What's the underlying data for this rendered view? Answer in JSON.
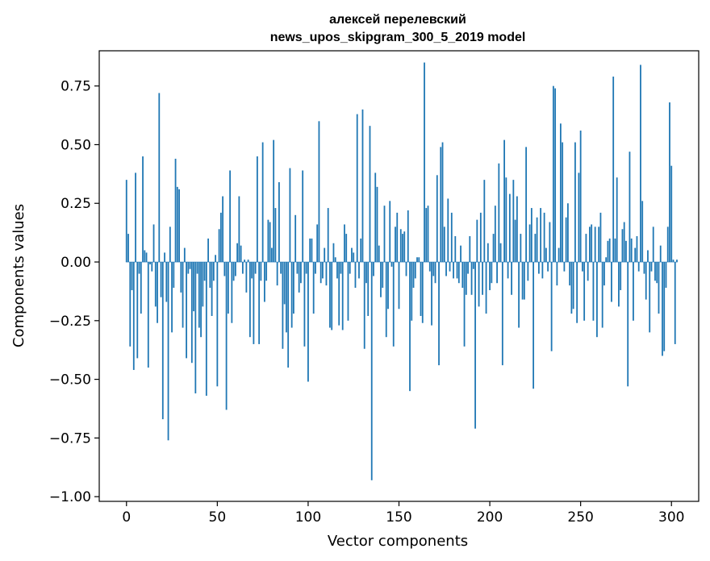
{
  "chart_data": {
    "type": "bar",
    "title_line1": "алексей перелевский",
    "title_line2": "news_upos_skipgram_300_5_2019 model",
    "xlabel": "Vector components",
    "ylabel": "Components values",
    "xlim": [
      -15,
      315
    ],
    "ylim": [
      -1.02,
      0.9
    ],
    "xticks": [
      0,
      50,
      100,
      150,
      200,
      250,
      300
    ],
    "yticks": [
      -1.0,
      -0.75,
      -0.5,
      -0.25,
      0.0,
      0.25,
      0.5,
      0.75
    ],
    "ytick_labels": [
      "−1.00",
      "−0.75",
      "−0.50",
      "−0.25",
      "0.00",
      "0.25",
      "0.50",
      "0.75"
    ],
    "bar_color": "#1f77b4",
    "grid": false,
    "values": [
      0.35,
      0.12,
      -0.36,
      -0.12,
      -0.46,
      0.38,
      -0.41,
      -0.05,
      -0.22,
      0.45,
      0.05,
      0.04,
      -0.45,
      -0.01,
      -0.04,
      0.16,
      -0.19,
      -0.26,
      0.72,
      -0.15,
      -0.67,
      0.04,
      -0.17,
      -0.76,
      0.15,
      -0.3,
      -0.11,
      0.44,
      0.32,
      0.31,
      -0.13,
      -0.28,
      0.06,
      -0.41,
      -0.05,
      -0.03,
      -0.43,
      -0.21,
      -0.56,
      -0.05,
      -0.28,
      -0.32,
      -0.19,
      -0.08,
      -0.57,
      0.1,
      -0.11,
      -0.23,
      -0.08,
      0.03,
      -0.53,
      0.14,
      0.21,
      0.28,
      -0.06,
      -0.63,
      -0.22,
      0.39,
      -0.26,
      -0.08,
      -0.06,
      0.08,
      0.28,
      0.07,
      -0.05,
      0.01,
      -0.13,
      0.01,
      -0.32,
      -0.07,
      -0.35,
      -0.05,
      0.45,
      -0.35,
      -0.08,
      0.51,
      -0.17,
      -0.08,
      0.18,
      0.17,
      0.06,
      0.52,
      0.23,
      -0.1,
      0.34,
      -0.05,
      -0.37,
      -0.18,
      -0.3,
      -0.45,
      0.4,
      -0.28,
      -0.22,
      0.2,
      -0.05,
      -0.13,
      -0.09,
      0.39,
      -0.36,
      -0.05,
      -0.51,
      0.1,
      0.1,
      -0.22,
      -0.05,
      0.16,
      0.6,
      -0.09,
      -0.07,
      0.06,
      -0.1,
      0.23,
      -0.28,
      -0.29,
      0.08,
      0.02,
      -0.07,
      -0.27,
      -0.05,
      -0.29,
      0.16,
      0.12,
      -0.25,
      -0.05,
      0.06,
      0.04,
      -0.11,
      0.63,
      -0.07,
      0.1,
      0.65,
      -0.37,
      -0.09,
      -0.23,
      0.58,
      -0.93,
      -0.06,
      0.38,
      0.32,
      0.07,
      -0.15,
      -0.11,
      0.24,
      -0.32,
      -0.2,
      0.26,
      -0.02,
      -0.36,
      0.15,
      0.21,
      -0.2,
      0.14,
      0.12,
      0.13,
      -0.06,
      0.22,
      -0.55,
      -0.25,
      -0.11,
      -0.07,
      0.02,
      0.02,
      -0.23,
      -0.26,
      0.85,
      0.23,
      0.24,
      -0.04,
      -0.27,
      -0.06,
      -0.09,
      0.37,
      -0.44,
      0.49,
      0.51,
      0.15,
      -0.06,
      0.27,
      -0.04,
      0.21,
      -0.07,
      0.11,
      -0.07,
      -0.09,
      0.07,
      -0.11,
      -0.36,
      -0.14,
      -0.05,
      0.11,
      -0.14,
      -0.03,
      -0.71,
      0.18,
      -0.19,
      0.21,
      -0.14,
      0.35,
      -0.22,
      0.08,
      -0.12,
      -0.09,
      0.12,
      0.24,
      -0.09,
      0.42,
      0.08,
      -0.44,
      0.52,
      0.36,
      -0.07,
      0.29,
      -0.14,
      0.35,
      0.18,
      0.28,
      -0.28,
      0.12,
      -0.16,
      -0.16,
      0.49,
      -0.08,
      0.16,
      0.23,
      -0.54,
      0.12,
      0.19,
      -0.05,
      0.23,
      -0.07,
      0.21,
      0.06,
      -0.04,
      0.17,
      -0.38,
      0.75,
      0.74,
      -0.1,
      0.06,
      0.59,
      0.51,
      -0.04,
      0.19,
      0.25,
      -0.1,
      -0.22,
      -0.2,
      0.51,
      -0.26,
      0.38,
      0.56,
      -0.04,
      -0.25,
      0.12,
      -0.08,
      0.15,
      0.16,
      -0.25,
      0.15,
      -0.32,
      0.15,
      0.21,
      -0.28,
      -0.1,
      0.02,
      0.09,
      0.1,
      -0.17,
      0.79,
      0.1,
      0.36,
      -0.19,
      -0.12,
      0.14,
      0.17,
      0.09,
      -0.53,
      0.47,
      0.1,
      -0.25,
      0.06,
      0.11,
      -0.04,
      0.84,
      0.26,
      -0.05,
      -0.16,
      0.05,
      -0.3,
      -0.04,
      0.15,
      -0.08,
      -0.09,
      -0.22,
      0.07,
      -0.4,
      -0.38,
      -0.11,
      0.15,
      0.68,
      0.41,
      0.01,
      -0.35,
      0.01
    ]
  }
}
